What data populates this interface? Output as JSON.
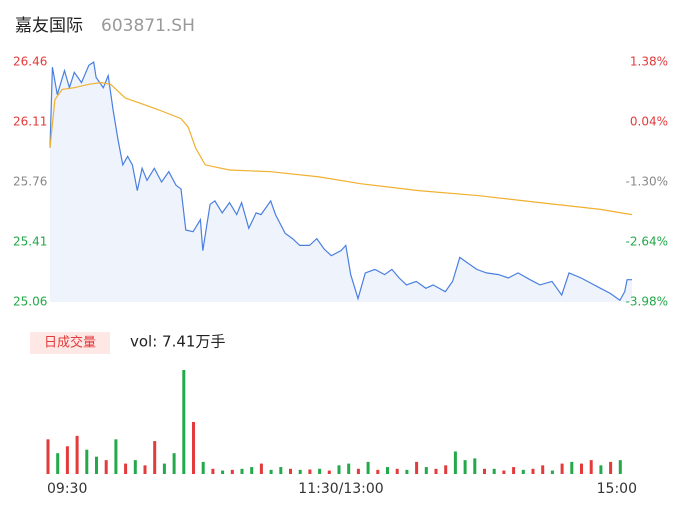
{
  "chart_data": [
    {
      "type": "line",
      "title": "嘉友国际",
      "subtitle": "603871.SH",
      "xlim": [
        0,
        240
      ],
      "ylim": [
        25.06,
        26.46
      ],
      "y2lim": [
        -3.98,
        1.38
      ],
      "yticks": [
        26.46,
        26.11,
        25.76,
        25.41,
        25.06
      ],
      "y_tick_colors": [
        "#e33b3b",
        "#e33b3b",
        "#888888",
        "#23a84a",
        "#23a84a"
      ],
      "y2ticks": [
        {
          "value": 1.38,
          "label": "1.38%"
        },
        {
          "value": 0.04,
          "label": "0.04%"
        },
        {
          "value": -1.3,
          "label": "-1.30%"
        },
        {
          "value": -2.64,
          "label": "-2.64%"
        },
        {
          "value": -3.98,
          "label": "-3.98%"
        }
      ],
      "y2_tick_colors": [
        "#e33b3b",
        "#e33b3b",
        "#888888",
        "#23a84a",
        "#23a84a"
      ],
      "area_color": "#eef3fc",
      "series": [
        {
          "color": "#4a7fe0",
          "x": [
            0,
            1,
            3,
            6,
            8,
            10,
            13,
            16,
            18,
            19,
            22,
            24,
            26,
            28,
            30,
            32,
            34,
            36,
            38,
            40,
            43,
            46,
            49,
            52,
            54,
            56,
            59,
            62,
            63,
            66,
            68,
            71,
            74,
            77,
            79,
            82,
            85,
            87,
            91,
            93,
            97,
            100,
            103,
            107,
            110,
            113,
            116,
            120,
            122,
            124,
            127,
            130,
            134,
            138,
            141,
            144,
            147,
            151,
            155,
            158,
            163,
            166,
            169,
            172,
            176,
            180,
            185,
            189,
            193,
            198,
            202,
            207,
            211,
            214,
            219,
            223,
            227,
            231,
            235,
            237,
            238,
            240
          ],
          "values": [
            25.96,
            26.43,
            26.27,
            26.41,
            26.31,
            26.4,
            26.34,
            26.44,
            26.46,
            26.37,
            26.31,
            26.38,
            26.18,
            26.01,
            25.86,
            25.91,
            25.86,
            25.71,
            25.84,
            25.77,
            25.84,
            25.76,
            25.82,
            25.74,
            25.72,
            25.48,
            25.47,
            25.54,
            25.36,
            25.63,
            25.65,
            25.58,
            25.64,
            25.57,
            25.64,
            25.49,
            25.58,
            25.57,
            25.65,
            25.57,
            25.46,
            25.43,
            25.39,
            25.39,
            25.43,
            25.37,
            25.33,
            25.36,
            25.39,
            25.22,
            25.08,
            25.23,
            25.25,
            25.22,
            25.25,
            25.2,
            25.16,
            25.18,
            25.14,
            25.16,
            25.12,
            25.18,
            25.32,
            25.29,
            25.25,
            25.23,
            25.22,
            25.2,
            25.23,
            25.19,
            25.16,
            25.18,
            25.1,
            25.23,
            25.2,
            25.17,
            25.14,
            25.11,
            25.07,
            25.12,
            25.19,
            25.19
          ]
        },
        {
          "color": "#f0b030",
          "x": [
            0,
            2,
            5,
            10,
            16,
            21,
            25,
            31,
            37,
            45,
            54,
            57,
            60,
            64,
            74,
            91,
            111,
            128,
            152,
            177,
            202,
            227,
            240
          ],
          "values": [
            25.96,
            26.24,
            26.3,
            26.31,
            26.33,
            26.34,
            26.33,
            26.25,
            26.22,
            26.18,
            26.13,
            26.08,
            25.96,
            25.86,
            25.83,
            25.82,
            25.79,
            25.75,
            25.71,
            25.68,
            25.64,
            25.6,
            25.57
          ]
        }
      ]
    },
    {
      "type": "bar",
      "title": "日成交量",
      "annotation": "vol: 7.41万手",
      "xlim": [
        0,
        240
      ],
      "ylim": [
        0,
        3000
      ],
      "xticks": [
        {
          "value": 0,
          "label": "09:30"
        },
        {
          "value": 120,
          "label": "11:30/13:00"
        },
        {
          "value": 240,
          "label": "15:00"
        }
      ],
      "x": [
        0,
        4,
        8,
        12,
        16,
        20,
        24,
        28,
        32,
        36,
        40,
        44,
        48,
        52,
        56,
        60,
        64,
        68,
        72,
        76,
        80,
        84,
        88,
        92,
        96,
        100,
        104,
        108,
        112,
        116,
        120,
        124,
        128,
        132,
        136,
        140,
        144,
        148,
        152,
        156,
        160,
        164,
        168,
        172,
        176,
        180,
        184,
        188,
        192,
        196,
        200,
        204,
        208,
        212,
        216,
        220,
        224,
        228,
        232,
        236
      ],
      "values": [
        1000,
        600,
        800,
        1100,
        700,
        500,
        400,
        1000,
        300,
        400,
        250,
        950,
        300,
        600,
        3000,
        1500,
        350,
        150,
        100,
        120,
        150,
        200,
        300,
        120,
        200,
        150,
        120,
        130,
        150,
        100,
        250,
        300,
        150,
        350,
        120,
        200,
        150,
        120,
        350,
        200,
        150,
        250,
        650,
        400,
        450,
        150,
        150,
        100,
        200,
        120,
        150,
        250,
        100,
        300,
        350,
        300,
        400,
        250,
        350,
        400
      ],
      "colors": [
        "#e33b3b",
        "#23a84a",
        "#e33b3b",
        "#e33b3b",
        "#23a84a",
        "#23a84a",
        "#e33b3b",
        "#23a84a",
        "#e33b3b",
        "#23a84a",
        "#e33b3b",
        "#e33b3b",
        "#23a84a",
        "#23a84a",
        "#23a84a",
        "#e33b3b",
        "#23a84a",
        "#e33b3b",
        "#23a84a",
        "#e33b3b",
        "#23a84a",
        "#23a84a",
        "#e33b3b",
        "#23a84a",
        "#23a84a",
        "#e33b3b",
        "#23a84a",
        "#e33b3b",
        "#23a84a",
        "#e33b3b",
        "#23a84a",
        "#23a84a",
        "#e33b3b",
        "#23a84a",
        "#e33b3b",
        "#23a84a",
        "#e33b3b",
        "#23a84a",
        "#e33b3b",
        "#23a84a",
        "#e33b3b",
        "#e33b3b",
        "#23a84a",
        "#23a84a",
        "#23a84a",
        "#e33b3b",
        "#23a84a",
        "#e33b3b",
        "#e33b3b",
        "#23a84a",
        "#e33b3b",
        "#e33b3b",
        "#23a84a",
        "#e33b3b",
        "#23a84a",
        "#e33b3b",
        "#e33b3b",
        "#23a84a",
        "#e33b3b",
        "#23a84a"
      ]
    }
  ]
}
